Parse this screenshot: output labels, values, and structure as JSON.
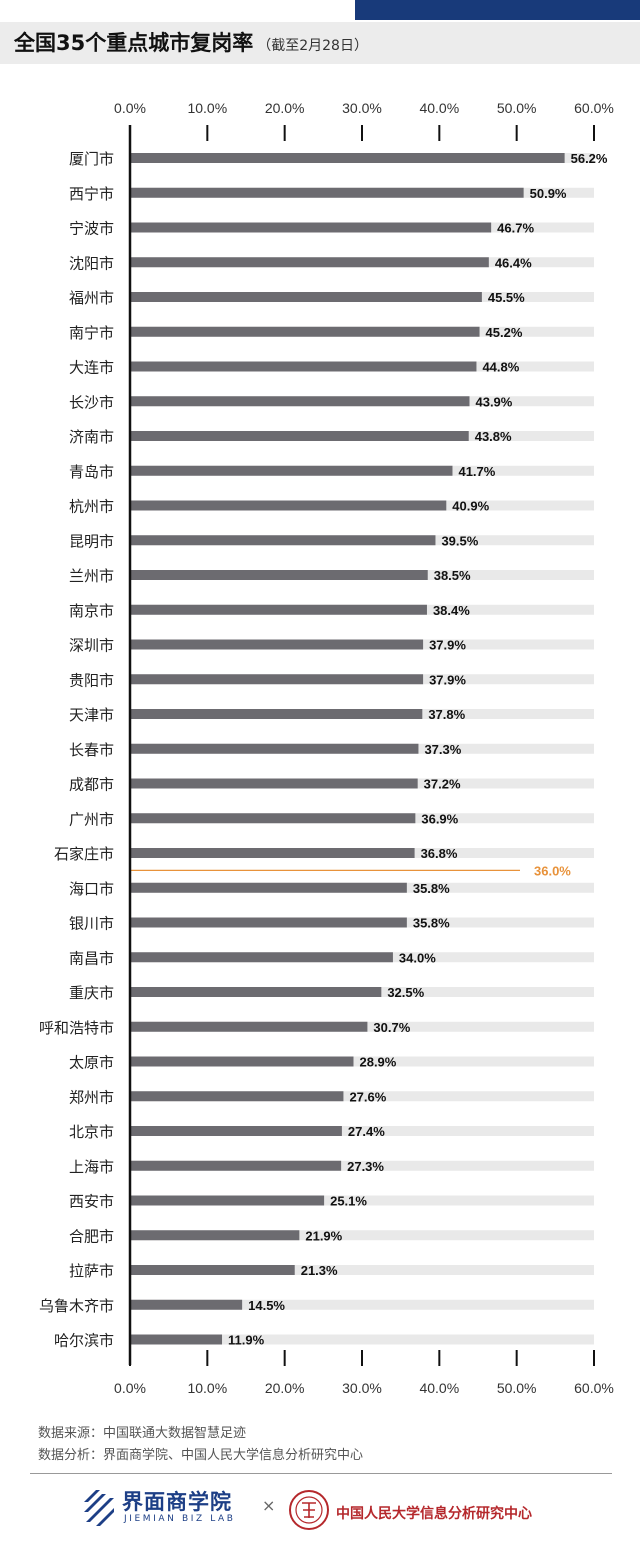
{
  "title": "全国35个重点城市复岗率",
  "subtitle": "（截至2月28日）",
  "chart_data": {
    "type": "bar",
    "orientation": "horizontal",
    "title": "全国35个重点城市复岗率",
    "subtitle": "（截至2月28日）",
    "categories": [
      "厦门市",
      "西宁市",
      "宁波市",
      "沈阳市",
      "福州市",
      "南宁市",
      "大连市",
      "长沙市",
      "济南市",
      "青岛市",
      "杭州市",
      "昆明市",
      "兰州市",
      "南京市",
      "深圳市",
      "贵阳市",
      "天津市",
      "长春市",
      "成都市",
      "广州市",
      "石家庄市",
      "海口市",
      "银川市",
      "南昌市",
      "重庆市",
      "呼和浩特市",
      "太原市",
      "郑州市",
      "北京市",
      "上海市",
      "西安市",
      "合肥市",
      "拉萨市",
      "乌鲁木齐市",
      "哈尔滨市"
    ],
    "values": [
      56.2,
      50.9,
      46.7,
      46.4,
      45.5,
      45.2,
      44.8,
      43.9,
      43.8,
      41.7,
      40.9,
      39.5,
      38.5,
      38.4,
      37.9,
      37.9,
      37.8,
      37.3,
      37.2,
      36.9,
      36.8,
      35.8,
      35.8,
      34.0,
      32.5,
      30.7,
      28.9,
      27.6,
      27.4,
      27.3,
      25.1,
      21.9,
      21.3,
      14.5,
      11.9
    ],
    "value_labels": [
      "56.2%",
      "50.9%",
      "46.7%",
      "46.4%",
      "45.5%",
      "45.2%",
      "44.8%",
      "43.9%",
      "43.8%",
      "41.7%",
      "40.9%",
      "39.5%",
      "38.5%",
      "38.4%",
      "37.9%",
      "37.9%",
      "37.8%",
      "37.3%",
      "37.2%",
      "36.9%",
      "36.8%",
      "35.8%",
      "35.8%",
      "34.0%",
      "32.5%",
      "30.7%",
      "28.9%",
      "27.6%",
      "27.4%",
      "27.3%",
      "25.1%",
      "21.9%",
      "21.3%",
      "14.5%",
      "11.9%"
    ],
    "xlim": [
      0,
      60
    ],
    "ticks": [
      0,
      10,
      20,
      30,
      40,
      50,
      60
    ],
    "tick_labels": [
      "0.0%",
      "10.0%",
      "20.0%",
      "30.0%",
      "40.0%",
      "50.0%",
      "60.0%"
    ],
    "reference_line": {
      "value": 36.0,
      "label": "36.0%",
      "insert_after_index": 20
    },
    "colors": {
      "bar": "#6c6b70",
      "track": "#e9e9e9",
      "reference": "#e8923a",
      "axis": "#111111"
    }
  },
  "footer": {
    "source": "数据来源：中国联通大数据智慧足迹",
    "analysis": "数据分析：界面商学院、中国人民大学信息分析研究中心"
  },
  "logos": {
    "left_name": "界面商学院",
    "left_en": "JIEMIAN BIZ LAB",
    "separator": "×",
    "right_name": "中国人民大学信息分析研究中心"
  }
}
